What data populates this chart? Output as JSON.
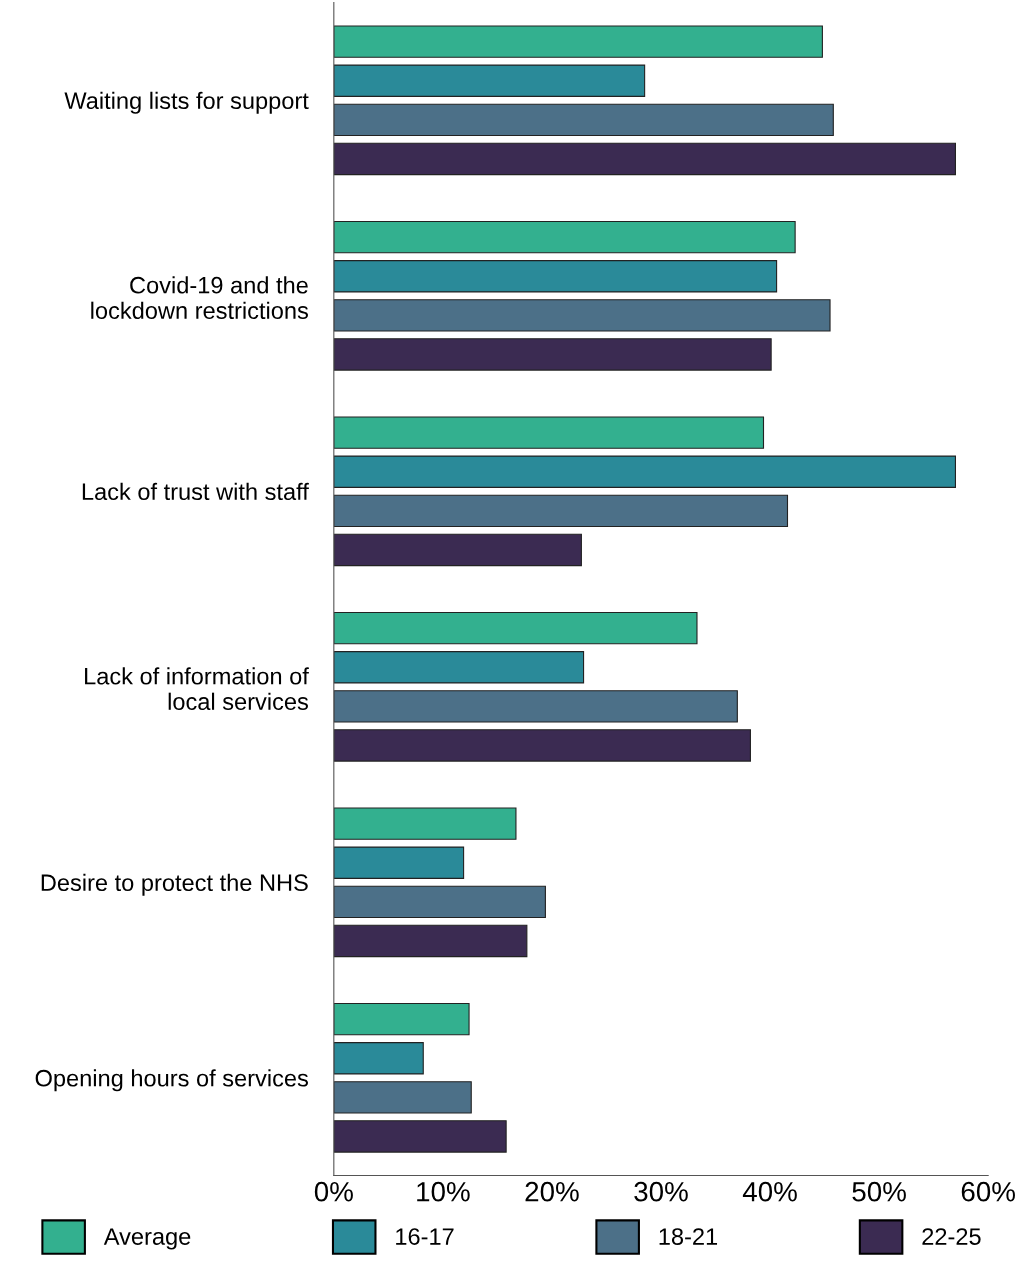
{
  "chart_data": {
    "type": "bar",
    "orientation": "horizontal",
    "categories": [
      "Waiting lists for support",
      "Covid-19 and the\nlockdown restrictions",
      "Lack of trust with staff",
      "Lack of information of\nlocal services",
      "Desire to protect the NHS",
      "Opening hours of services"
    ],
    "series": [
      {
        "name": "Average",
        "color": "#33b08f",
        "values": [
          44.8,
          42.3,
          39.4,
          33.3,
          16.7,
          12.4
        ]
      },
      {
        "name": "16-17",
        "color": "#2a8a99",
        "values": [
          28.5,
          40.6,
          57,
          22.9,
          11.9,
          8.2
        ]
      },
      {
        "name": "18-21",
        "color": "#4c7088",
        "values": [
          45.8,
          45.5,
          41.6,
          37,
          19.4,
          12.6
        ]
      },
      {
        "name": "22-25",
        "color": "#3b2b52",
        "values": [
          57,
          40.1,
          22.7,
          38.2,
          17.7,
          15.8
        ]
      }
    ],
    "xlim": [
      0,
      60
    ],
    "xticks": [
      {
        "value": 0,
        "label": "0%"
      },
      {
        "value": 10,
        "label": "10%"
      },
      {
        "value": 20,
        "label": "20%"
      },
      {
        "value": 30,
        "label": "30%"
      },
      {
        "value": 40,
        "label": "40%"
      },
      {
        "value": 50,
        "label": "50%"
      },
      {
        "value": 60,
        "label": "60%"
      }
    ],
    "grid": false,
    "legend": "bottom"
  }
}
